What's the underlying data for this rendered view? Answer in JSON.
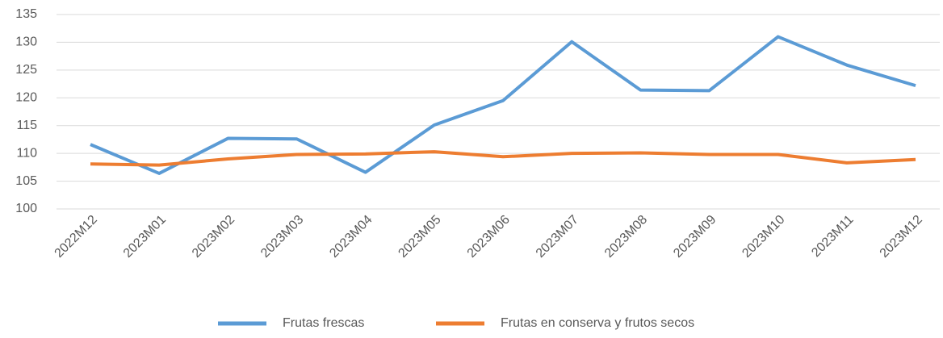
{
  "chart_data": {
    "type": "line",
    "categories": [
      "2022M12",
      "2023M01",
      "2023M02",
      "2023M03",
      "2023M04",
      "2023M05",
      "2023M06",
      "2023M07",
      "2023M08",
      "2023M09",
      "2023M10",
      "2023M11",
      "2023M12"
    ],
    "series": [
      {
        "name": "Frutas frescas",
        "color": "#5b9bd5",
        "values": [
          111.6,
          106.4,
          112.7,
          112.6,
          106.6,
          115.1,
          119.5,
          130.1,
          121.4,
          121.3,
          131.0,
          125.9,
          122.2
        ]
      },
      {
        "name": "Frutas en conserva y frutos secos",
        "color": "#ed7d31",
        "values": [
          108.1,
          107.9,
          109.0,
          109.8,
          109.9,
          110.3,
          109.4,
          110.0,
          110.1,
          109.8,
          109.8,
          108.3,
          108.9
        ]
      }
    ],
    "ylim": [
      100,
      135
    ],
    "yticks": [
      100,
      105,
      110,
      115,
      120,
      125,
      130,
      135
    ],
    "grid": true,
    "legend": "bottom"
  }
}
